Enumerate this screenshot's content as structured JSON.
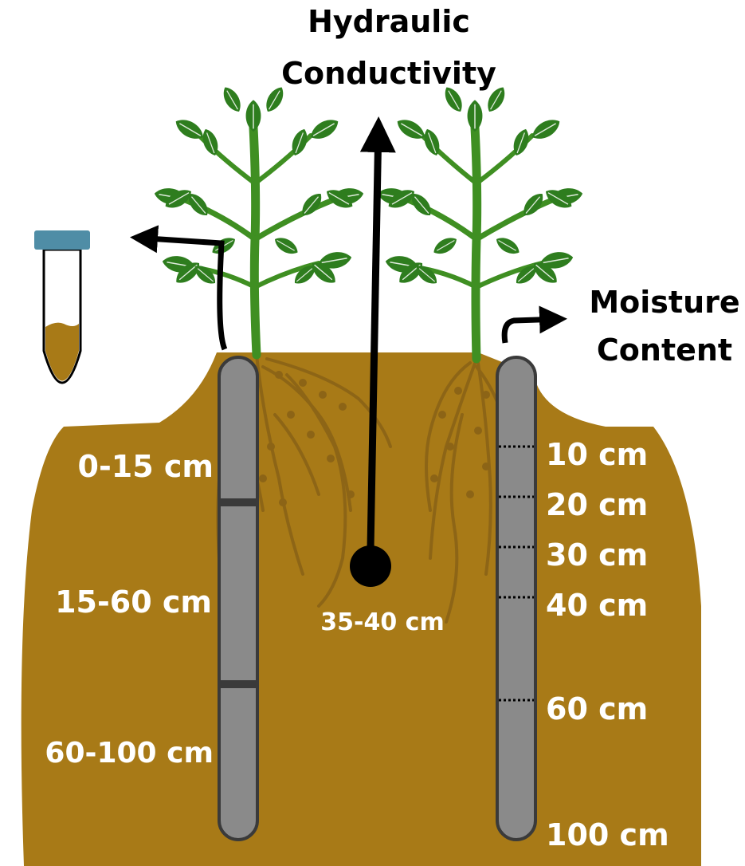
{
  "title": {
    "line1": "Hydraulic",
    "line2": "Conductivity"
  },
  "moisture": {
    "line1": "Moisture",
    "line2": "Content"
  },
  "core_depths": [
    "0-15 cm",
    "15-60 cm",
    "60-100 cm"
  ],
  "probe_depths": [
    "10 cm",
    "20 cm",
    "30 cm",
    "40 cm",
    "60 cm",
    "100 cm"
  ],
  "conductivity_depth": "35-40 cm",
  "colors": {
    "soil": "#A87A17",
    "root": "#8C6416",
    "leaf": "#2E7D1E",
    "stem": "#3F8F22",
    "tube": "#8A8A8A",
    "tube_outline": "#3A3A3A",
    "vial_cap": "#4F8DA6",
    "arrow": "#000000",
    "label_light": "#FFFFFF"
  }
}
